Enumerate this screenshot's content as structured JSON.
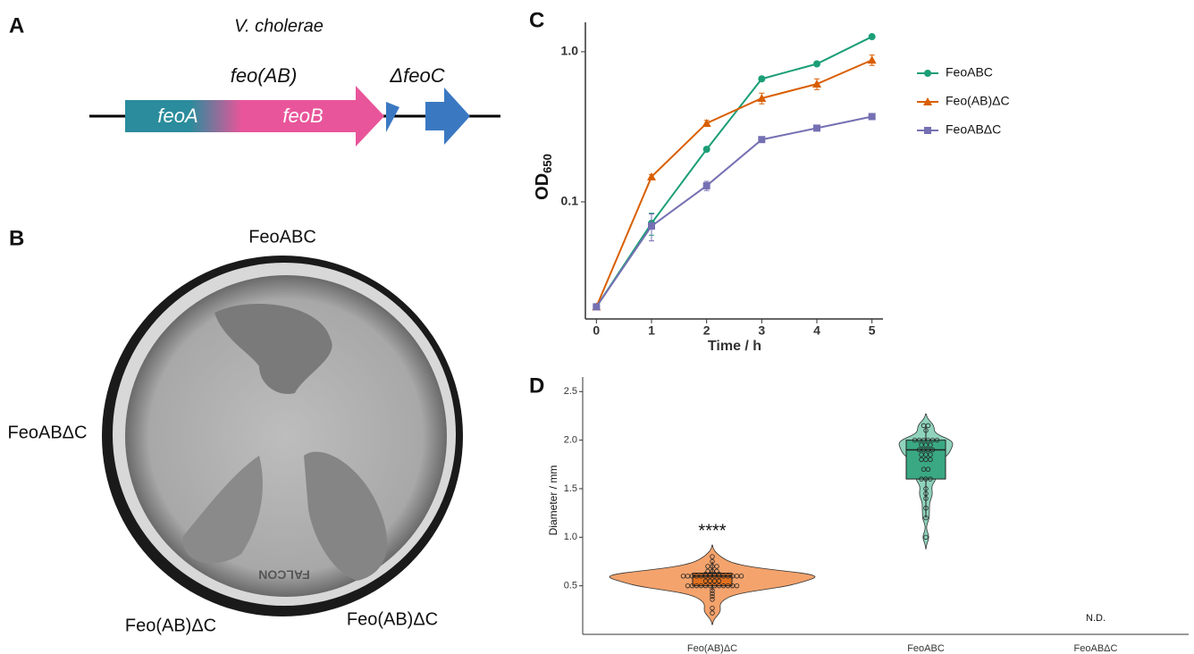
{
  "panels": {
    "a": "A",
    "b": "B",
    "c": "C",
    "d": "D"
  },
  "diagram": {
    "organism": "V. cholerae",
    "operon": "feo(AB)",
    "deletion": "ΔfeoC",
    "gene_a": "feoA",
    "gene_b": "feoB"
  },
  "plate": {
    "top": "FeoABC",
    "left": "FeoABΔC",
    "bottom_left": "Feo(AB)ΔC",
    "bottom_right": "Feo(AB)ΔC",
    "imprint": "FALCON"
  },
  "chart_data": [
    {
      "type": "line",
      "x_label": "Time / h",
      "y_label": {
        "text": "OD",
        "subscript": "650"
      },
      "log_y": true,
      "x": [
        0,
        1,
        2,
        3,
        4,
        5
      ],
      "xlim": [
        -0.2,
        5.2
      ],
      "xticks": [
        0,
        1,
        2,
        3,
        4,
        5
      ],
      "ylim": [
        0.0166,
        1.57
      ],
      "yticks": [
        {
          "value": 0.1,
          "label": "0.1"
        },
        {
          "value": 1,
          "label": "1.0"
        }
      ],
      "series": [
        {
          "name": "FeoABC",
          "color": "#1b9e77",
          "marker": "circle",
          "values": [
            0.02,
            0.072,
            0.224,
            0.66,
            0.83,
            1.26
          ],
          "errors": [
            0,
            0.012,
            0.006,
            0.02,
            0.02,
            0.02
          ]
        },
        {
          "name": "Feo(AB)ΔC",
          "color": "#d95f02",
          "marker": "triangle",
          "values": [
            0.02,
            0.147,
            0.334,
            0.49,
            0.61,
            0.88
          ],
          "errors": [
            0,
            0.005,
            0.015,
            0.04,
            0.05,
            0.07
          ]
        },
        {
          "name": "FeoABΔC",
          "color": "#7570b3",
          "marker": "square",
          "values": [
            0.02,
            0.069,
            0.128,
            0.26,
            0.31,
            0.37
          ],
          "errors": [
            0,
            0.014,
            0.009,
            0.01,
            0.01,
            0.015
          ]
        }
      ]
    },
    {
      "type": "violin",
      "y_label": "Diameter / mm",
      "ylim": [
        0,
        2.65
      ],
      "yticks": [
        {
          "value": 0.5,
          "label": "0.5"
        },
        {
          "value": 1,
          "label": "1.0"
        },
        {
          "value": 1.5,
          "label": "1.5"
        },
        {
          "value": 2,
          "label": "2.0"
        },
        {
          "value": 2.5,
          "label": "2.5"
        }
      ],
      "groups": [
        {
          "name": "Feo(AB)ΔC",
          "color": "#f4a36c",
          "box_color": "#e0701f",
          "annotation": "****",
          "values": [
            0.22,
            0.27,
            0.36,
            0.39,
            0.42,
            0.45,
            0.5,
            0.5,
            0.5,
            0.5,
            0.5,
            0.5,
            0.5,
            0.5,
            0.5,
            0.5,
            0.5,
            0.5,
            0.55,
            0.55,
            0.55,
            0.55,
            0.6,
            0.6,
            0.6,
            0.6,
            0.6,
            0.6,
            0.6,
            0.6,
            0.6,
            0.6,
            0.6,
            0.6,
            0.6,
            0.6,
            0.62,
            0.62,
            0.62,
            0.62,
            0.65,
            0.65,
            0.65,
            0.7,
            0.7,
            0.7,
            0.75,
            0.8
          ],
          "box": {
            "whisker_low": 0.45,
            "q1": 0.5,
            "median": 0.6,
            "q3": 0.63,
            "whisker_high": 0.75
          }
        },
        {
          "name": "FeoABC",
          "color": "#8fd3bd",
          "box_color": "#3aa883",
          "values": [
            1.0,
            1.2,
            1.3,
            1.4,
            1.45,
            1.5,
            1.6,
            1.6,
            1.6,
            1.7,
            1.7,
            1.8,
            1.8,
            1.8,
            1.85,
            1.85,
            1.85,
            1.9,
            1.9,
            1.9,
            1.9,
            1.95,
            1.95,
            1.95,
            2.0,
            2.0,
            2.0,
            2.0,
            2.0,
            2.0,
            2.1,
            2.15,
            2.15
          ],
          "box": {
            "whisker_low": 1.2,
            "q1": 1.6,
            "median": 1.9,
            "q3": 2.0,
            "whisker_high": 2.15
          }
        },
        {
          "name": "FeoABΔC",
          "annotation": "N.D.",
          "values": []
        }
      ]
    }
  ]
}
